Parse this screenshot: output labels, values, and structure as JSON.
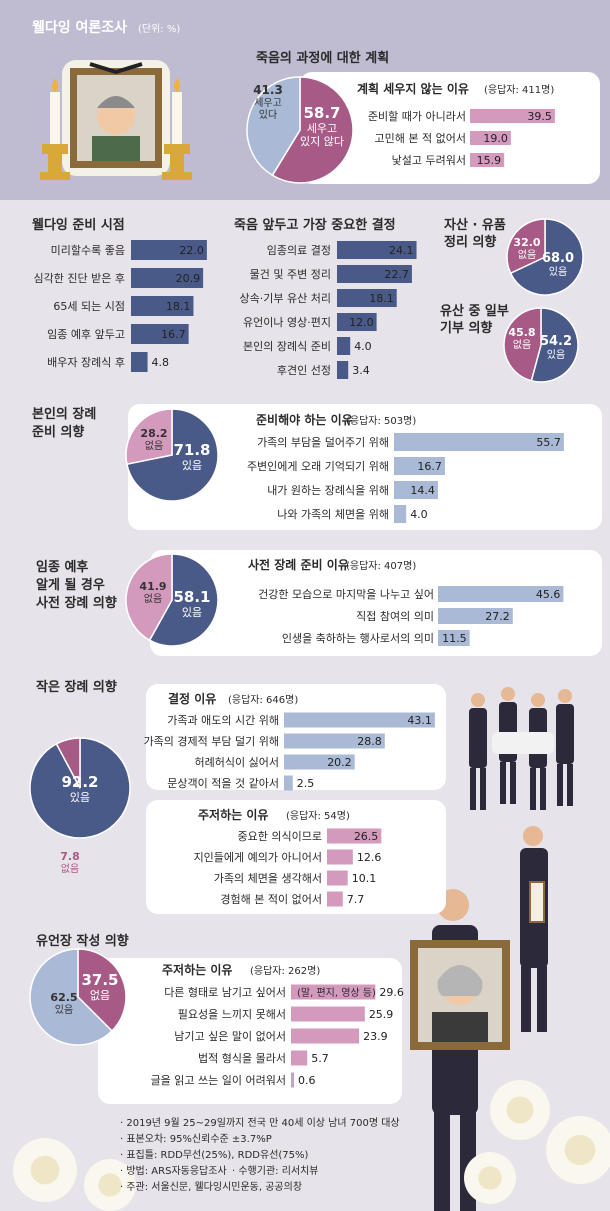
{
  "colors": {
    "navy": "#495a88",
    "mauve": "#a85a86",
    "pink": "#d49abe",
    "lightblue": "#a9b9d6",
    "panel": "#ffffff",
    "text": "#2a2a2a"
  },
  "header": {
    "title": "웰다잉 여론조사",
    "unit": "(단위: %)"
  },
  "chart_data": [
    {
      "id": "death_plan",
      "type": "pie",
      "title": "죽음의 과정에 대한 계획",
      "slices": [
        {
          "value": "58.7",
          "label": "세우고\n있지 않다",
          "color": "mauve"
        },
        {
          "value": "41.3",
          "label": "세우고\n있다",
          "color": "lightblue"
        }
      ]
    },
    {
      "id": "no_plan_reasons",
      "type": "bar",
      "title": "계획 세우지 않는 이유",
      "note": "(응답자: 411명)",
      "categories": [
        "준비할 때가 아니라서",
        "고민해 본 적 없어서",
        "낯설고 두려워서"
      ],
      "values": [
        39.5,
        19.0,
        15.9
      ],
      "value_labels": [
        "39.5",
        "19.0",
        "15.9"
      ]
    },
    {
      "id": "prep_timing",
      "type": "bar",
      "title": "웰다잉 준비 시점",
      "categories": [
        "미리할수록 좋음",
        "심각한 진단 받은 후",
        "65세 되는 시점",
        "임종 예후 앞두고",
        "배우자 장례식 후"
      ],
      "values": [
        22.0,
        20.9,
        18.1,
        16.7,
        4.8
      ],
      "value_labels": [
        "22.0",
        "20.9",
        "18.1",
        "16.7",
        "4.8"
      ]
    },
    {
      "id": "important_decision",
      "type": "bar",
      "title": "죽음 앞두고 가장 중요한 결정",
      "categories": [
        "임종의료 결정",
        "물건 및 주변 정리",
        "상속·기부 유산 처리",
        "유언이나 영상·편지",
        "본인의 장례식 준비",
        "후견인 선정"
      ],
      "values": [
        24.1,
        22.7,
        18.1,
        12.0,
        4.0,
        3.4
      ],
      "value_labels": [
        "24.1",
        "22.7",
        "18.1",
        "12.0",
        "4.0",
        "3.4"
      ]
    },
    {
      "id": "asset_arrangement",
      "type": "pie",
      "title": "자산 · 유품\n정리 의향",
      "slices": [
        {
          "value": "68.0",
          "label": "있음",
          "color": "navy"
        },
        {
          "value": "32.0",
          "label": "없음",
          "color": "mauve"
        }
      ]
    },
    {
      "id": "legacy_donation",
      "type": "pie",
      "title": "유산 중 일부\n기부 의향",
      "slices": [
        {
          "value": "54.2",
          "label": "있음",
          "color": "navy"
        },
        {
          "value": "45.8",
          "label": "없음",
          "color": "mauve"
        }
      ]
    },
    {
      "id": "own_funeral_prep",
      "type": "pie",
      "title": "본인의 장례\n준비 의향",
      "slices": [
        {
          "value": "71.8",
          "label": "있음",
          "color": "navy"
        },
        {
          "value": "28.2",
          "label": "없음",
          "color": "pink"
        }
      ]
    },
    {
      "id": "prep_reasons",
      "type": "bar",
      "title": "준비해야 하는 이유",
      "note": "(응답자: 503명)",
      "categories": [
        "가족의 부담을 덜어주기 위해",
        "주변인에게 오래 기억되기 위해",
        "내가 원하는 장례식을 위해",
        "나와 가족의 체면을 위해"
      ],
      "values": [
        55.7,
        16.7,
        14.4,
        4.0
      ],
      "value_labels": [
        "55.7",
        "16.7",
        "14.4",
        "4.0"
      ]
    },
    {
      "id": "pre_funeral_intent",
      "type": "pie",
      "title": "임종 예후\n알게 될 경우\n사전 장례 의향",
      "slices": [
        {
          "value": "58.1",
          "label": "있음",
          "color": "navy"
        },
        {
          "value": "41.9",
          "label": "없음",
          "color": "pink"
        }
      ]
    },
    {
      "id": "pre_funeral_reasons",
      "type": "bar",
      "title": "사전 장례 준비 이유",
      "note": "(응답자: 407명)",
      "categories": [
        "건강한 모습으로 마지막을 나누고 싶어",
        "직접 참여의 의미",
        "인생을 축하하는 행사로서의 의미"
      ],
      "values": [
        45.6,
        27.2,
        11.5
      ],
      "value_labels": [
        "45.6",
        "27.2",
        "11.5"
      ]
    },
    {
      "id": "small_funeral",
      "type": "pie",
      "title": "작은 장례 의향",
      "slices": [
        {
          "value": "92.2",
          "label": "있음",
          "color": "navy"
        },
        {
          "value": "7.8",
          "label": "없음",
          "color": "mauve"
        }
      ]
    },
    {
      "id": "decision_reasons",
      "type": "bar",
      "title": "결정 이유",
      "note": "(응답자: 646명)",
      "categories": [
        "가족과 애도의 시간 위해",
        "가족의 경제적 부담 덜기 위해",
        "허례허식이 싫어서",
        "문상객이 적을 것 같아서"
      ],
      "values": [
        43.1,
        28.8,
        20.2,
        2.5
      ],
      "value_labels": [
        "43.1",
        "28.8",
        "20.2",
        "2.5"
      ]
    },
    {
      "id": "hesitation_reasons",
      "type": "bar",
      "title": "주저하는 이유",
      "note": "(응답자: 54명)",
      "categories": [
        "중요한 의식이므로",
        "지인들에게 예의가 아니어서",
        "가족의 체면을 생각해서",
        "경험해 본 적이 없어서"
      ],
      "values": [
        26.5,
        12.6,
        10.1,
        7.7
      ],
      "value_labels": [
        "26.5",
        "12.6",
        "10.1",
        "7.7"
      ]
    },
    {
      "id": "will_writing",
      "type": "pie",
      "title": "유언장 작성 의향",
      "slices": [
        {
          "value": "37.5",
          "label": "없음",
          "color": "mauve"
        },
        {
          "value": "62.5",
          "label": "있음",
          "color": "lightblue"
        }
      ]
    },
    {
      "id": "will_hesitation",
      "type": "bar",
      "title": "주저하는 이유",
      "note": "(응답자: 262명)",
      "categories": [
        "다른 형태로 남기고 싶어서",
        "필요성을 느끼지 못해서",
        "남기고 싶은 말이 없어서",
        "법적 형식을 몰라서",
        "글을 읽고 쓰는 일이 어려워서"
      ],
      "values": [
        29.6,
        25.9,
        23.9,
        5.7,
        0.6
      ],
      "value_labels": [
        "29.6",
        "25.9",
        "23.9",
        "5.7",
        "0.6"
      ],
      "annotation": "(말, 편지, 영상 등)"
    }
  ],
  "footnotes": [
    "2019년 9월 25~29일까지 전국 만 40세 이상 남녀 700명 대상",
    "표본오차: 95%신뢰수준 ±3.7%P",
    "표집틀: RDD무선(25%), RDD유선(75%)",
    "방법: ARS자동응답조사",
    "수행기관: 리서치뷰",
    "주관: 서울신문, 웰다잉시민운동, 공공의창"
  ]
}
